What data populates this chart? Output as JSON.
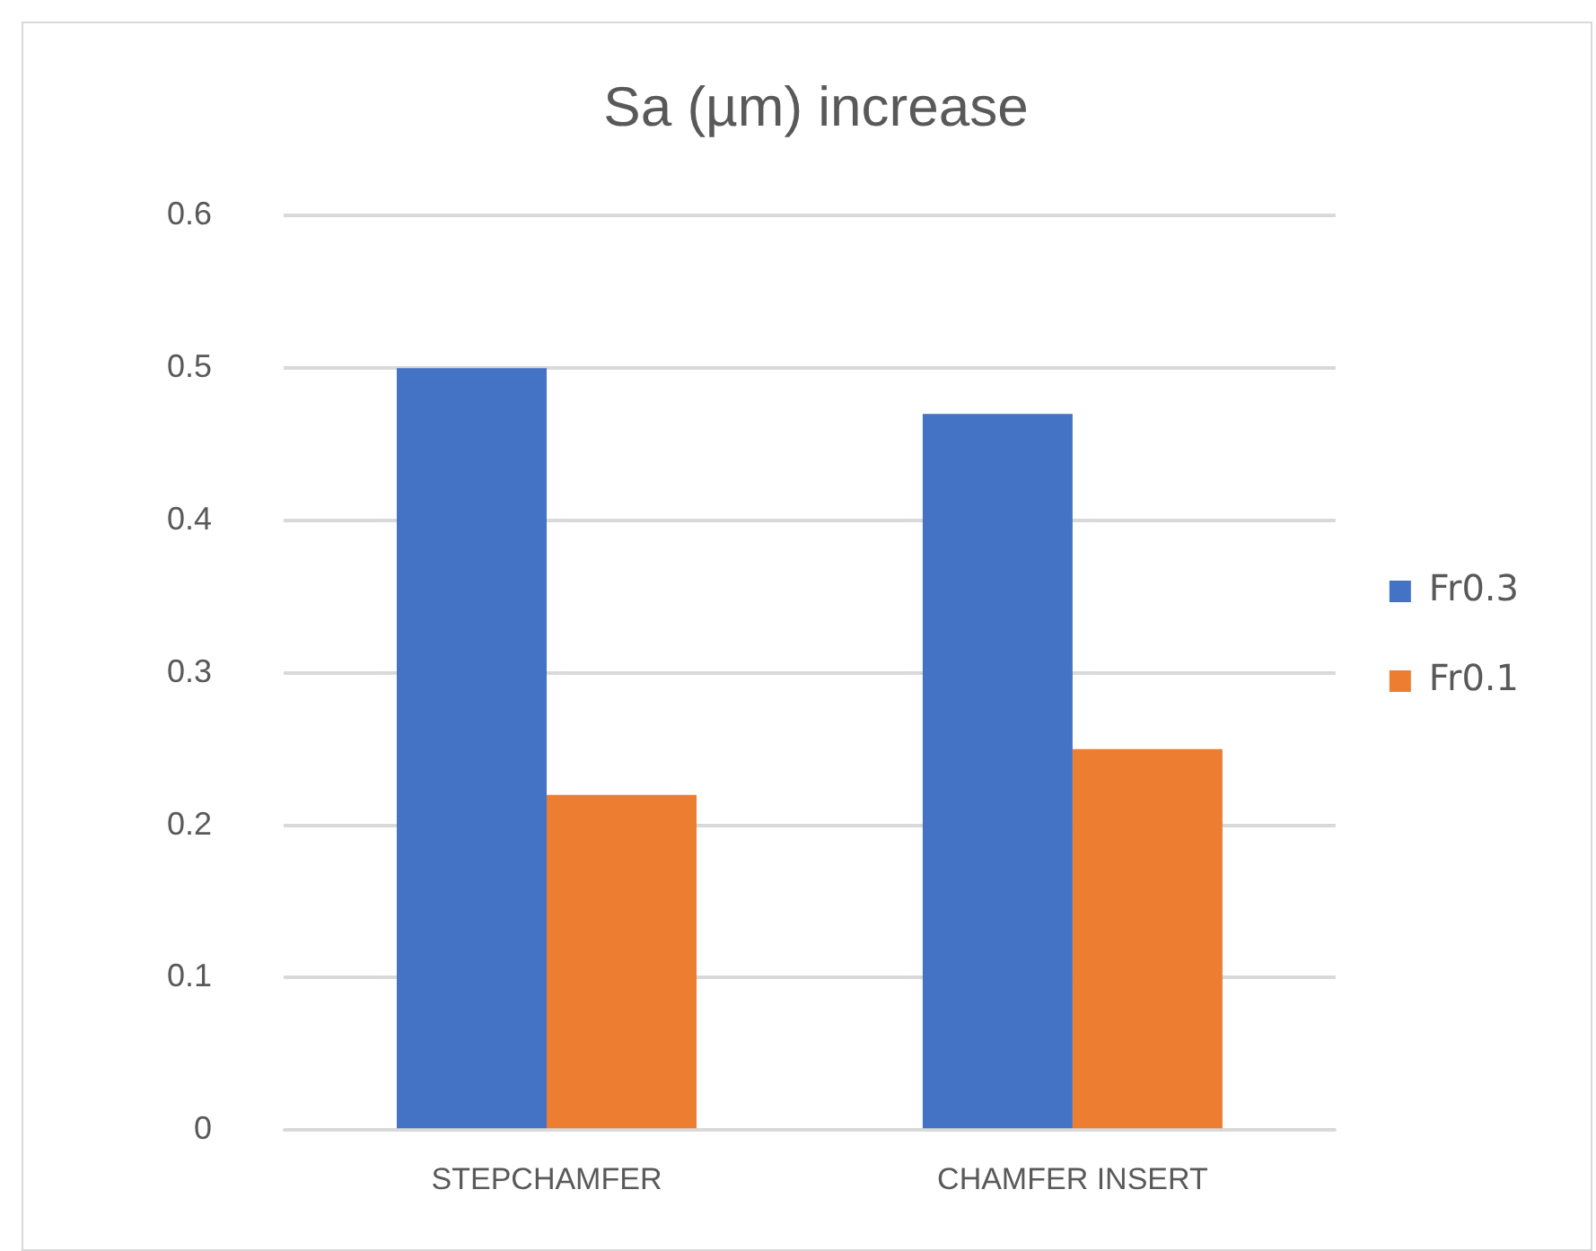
{
  "chart_data": {
    "type": "bar",
    "title": "Sa (µm) increase",
    "categories": [
      "STEPCHAMFER",
      "CHAMFER INSERT"
    ],
    "series": [
      {
        "name": "Fr0.3",
        "color": "#4472c4",
        "values": [
          0.5,
          0.47
        ]
      },
      {
        "name": "Fr0.1",
        "color": "#ed7d31",
        "values": [
          0.22,
          0.25
        ]
      }
    ],
    "ylim": [
      0,
      0.6
    ],
    "yticks": [
      0,
      0.1,
      0.2,
      0.3,
      0.4,
      0.5,
      0.6
    ],
    "grid": "y",
    "legend": "right"
  }
}
